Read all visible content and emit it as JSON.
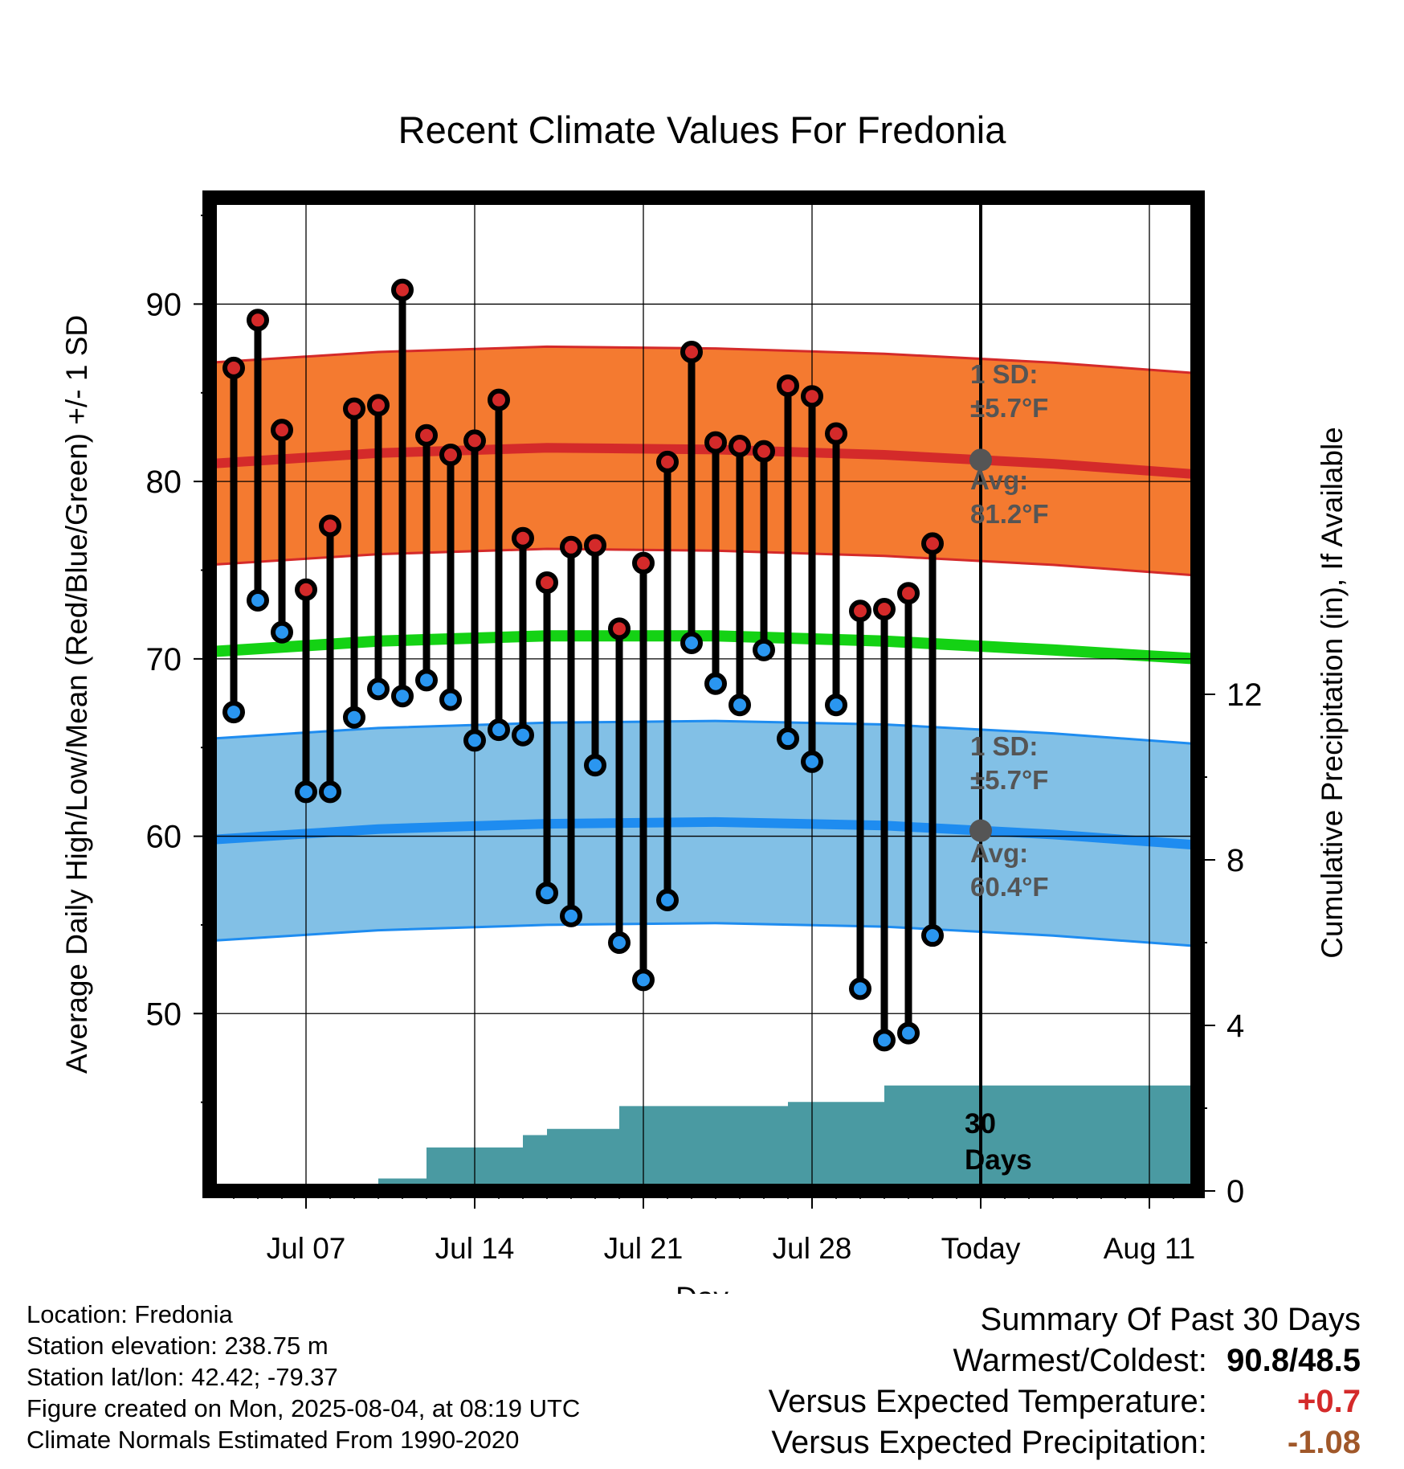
{
  "title": "Recent Climate Values For Fredonia",
  "y_left_label": "Average Daily High/Low/Mean (Red/Blue/Green) +/- 1 SD",
  "y_right_label": "Cumulative Precipitation (in), If Available",
  "x_label": "Day",
  "annotations": {
    "high_sd_line1": "1 SD:",
    "high_sd_line2": "±5.7°F",
    "high_avg_line1": "Avg:",
    "high_avg_line2": "81.2°F",
    "low_sd_line1": "1 SD:",
    "low_sd_line2": "±5.7°F",
    "low_avg_line1": "Avg:",
    "low_avg_line2": "60.4°F",
    "precip_line1": "30",
    "precip_line2": "Days"
  },
  "footer": {
    "location": "Location: Fredonia",
    "elevation": "Station elevation: 238.75 m",
    "latlon": "Station lat/lon: 42.42; -79.37",
    "created": "Figure created on Mon, 2025-08-04, at 08:19 UTC",
    "normals": "Climate Normals Estimated From 1990-2020"
  },
  "summary": {
    "heading": "Summary Of Past 30 Days",
    "warm_cold_label": "Warmest/Coldest:",
    "warm_cold_value": "90.8/48.5",
    "temp_label": "Versus Expected Temperature:",
    "temp_value": "+0.7",
    "precip_label": "Versus Expected Precipitation:",
    "precip_value": "-1.08"
  },
  "colors": {
    "high_band": "#f47a30",
    "high_avg_line": "#d42a2a",
    "low_band": "#82c0e6",
    "low_avg_line": "#1e8cf0",
    "mean_line": "#14d214",
    "precip_fill": "#4a9aa2",
    "high_point": "#d42a2a",
    "low_point": "#2a96f0",
    "temp_delta": "#d42a2a",
    "precip_delta": "#a0582a"
  },
  "chart_data": {
    "type": "line",
    "x_ticks": [
      "Jul 07",
      "Jul 14",
      "Jul 21",
      "Jul 28",
      "Today",
      "Aug 11"
    ],
    "x_tick_dates": [
      "2025-07-07",
      "2025-07-14",
      "2025-07-21",
      "2025-07-28",
      "2025-08-04",
      "2025-08-11"
    ],
    "xlim": [
      "2025-07-03",
      "2025-08-13"
    ],
    "ylim": [
      40,
      96
    ],
    "y_ticks": [
      50,
      60,
      70,
      80,
      90
    ],
    "y2lim": [
      0,
      24
    ],
    "y2_ticks": [
      0,
      4,
      8,
      12
    ],
    "grid": true,
    "daily_dates": [
      "2025-07-04",
      "2025-07-05",
      "2025-07-06",
      "2025-07-07",
      "2025-07-08",
      "2025-07-09",
      "2025-07-10",
      "2025-07-11",
      "2025-07-12",
      "2025-07-13",
      "2025-07-14",
      "2025-07-15",
      "2025-07-16",
      "2025-07-17",
      "2025-07-18",
      "2025-07-19",
      "2025-07-20",
      "2025-07-21",
      "2025-07-22",
      "2025-07-23",
      "2025-07-24",
      "2025-07-25",
      "2025-07-26",
      "2025-07-27",
      "2025-07-28",
      "2025-07-29",
      "2025-07-30",
      "2025-07-31",
      "2025-08-01",
      "2025-08-02",
      "2025-08-03"
    ],
    "daily_high": [
      86.4,
      89.1,
      82.9,
      73.9,
      77.5,
      84.1,
      84.3,
      90.8,
      82.6,
      81.5,
      82.3,
      84.6,
      76.8,
      74.3,
      76.3,
      76.4,
      71.7,
      75.4,
      81.1,
      87.3,
      82.2,
      82.0,
      81.7,
      85.4,
      84.8,
      82.7,
      72.7,
      72.8,
      73.7,
      76.5,
      null
    ],
    "daily_low": [
      67.0,
      73.3,
      71.5,
      62.5,
      62.5,
      66.7,
      68.3,
      67.9,
      68.8,
      67.7,
      65.4,
      66.0,
      65.7,
      56.8,
      55.5,
      64.0,
      54.0,
      51.9,
      56.4,
      70.9,
      68.6,
      67.4,
      70.5,
      65.5,
      64.2,
      67.4,
      51.4,
      48.5,
      48.9,
      54.4,
      null
    ],
    "normal_dates": [
      "2025-07-03",
      "2025-07-10",
      "2025-07-17",
      "2025-07-24",
      "2025-07-31",
      "2025-08-07",
      "2025-08-13"
    ],
    "normal_high": [
      81.0,
      81.6,
      81.9,
      81.8,
      81.5,
      81.0,
      80.4
    ],
    "normal_low": [
      59.8,
      60.4,
      60.7,
      60.8,
      60.6,
      60.1,
      59.5
    ],
    "normal_mean": [
      70.4,
      71.0,
      71.3,
      71.3,
      71.0,
      70.5,
      70.0
    ],
    "sd": 5.7,
    "precip_dates": [
      "2025-07-03",
      "2025-07-08",
      "2025-07-09",
      "2025-07-10",
      "2025-07-11",
      "2025-07-12",
      "2025-07-15",
      "2025-07-16",
      "2025-07-17",
      "2025-07-19",
      "2025-07-20",
      "2025-07-26",
      "2025-07-27",
      "2025-07-30",
      "2025-07-31",
      "2025-08-13"
    ],
    "precip_values": [
      0.0,
      0.0,
      0.12,
      0.3,
      0.3,
      1.05,
      1.05,
      1.35,
      1.5,
      1.5,
      2.05,
      2.05,
      2.15,
      2.15,
      2.55,
      2.55
    ],
    "today": "2025-08-04"
  }
}
